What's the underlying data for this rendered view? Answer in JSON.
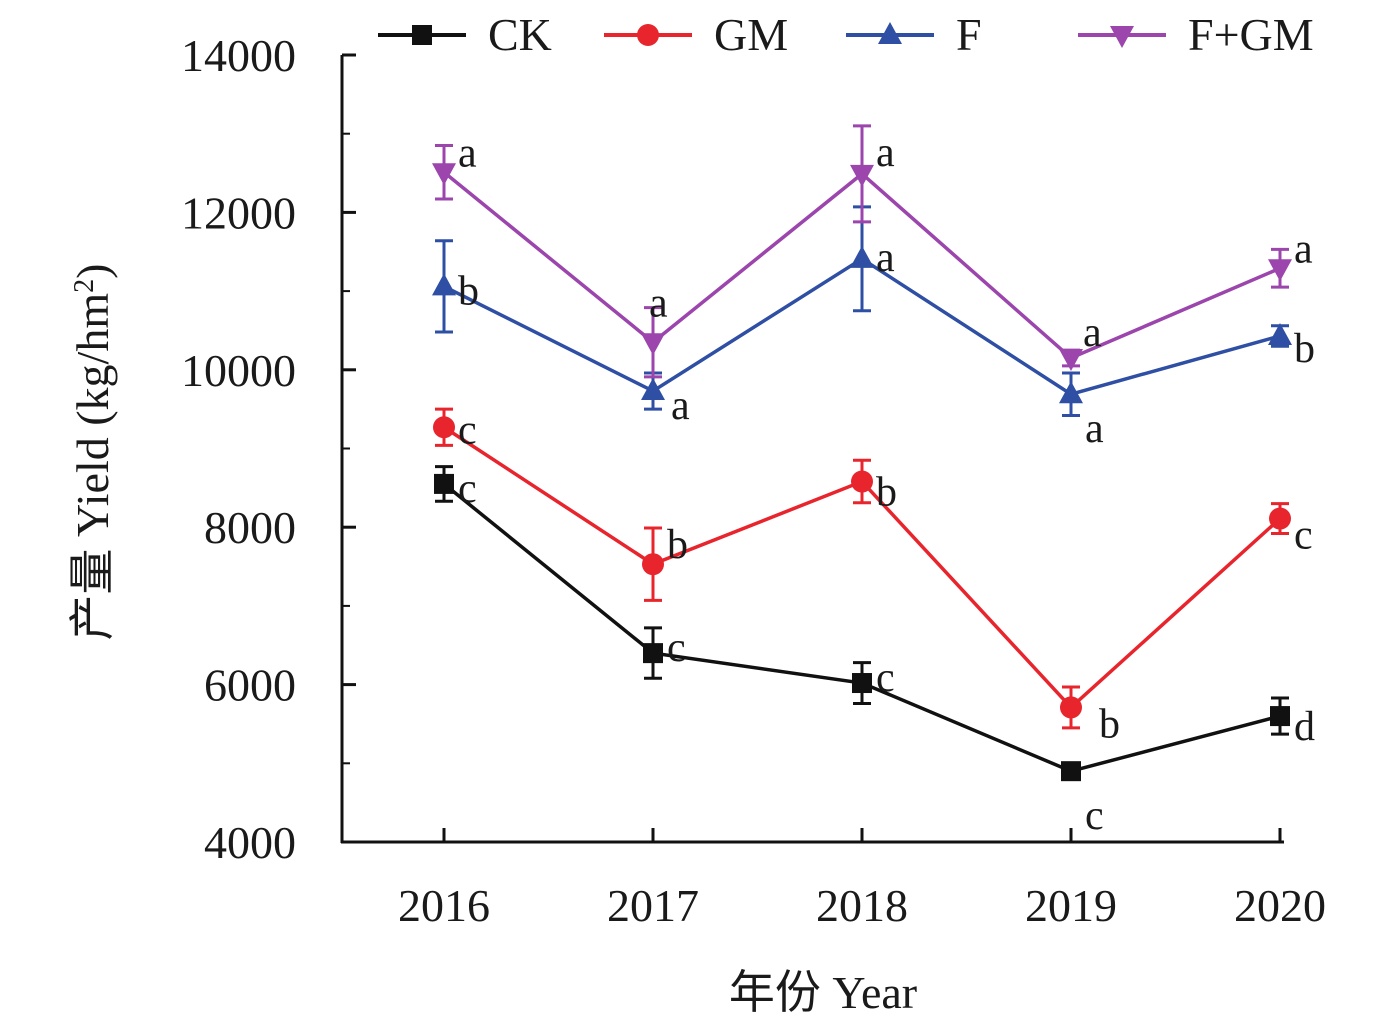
{
  "chart_data": {
    "type": "line",
    "x": [
      "2016",
      "2017",
      "2018",
      "2019",
      "2020"
    ],
    "xlabel": "年份 Year",
    "ylabel_prefix": "产量 Yield (kg/hm",
    "ylabel_sup": "2",
    "ylabel_suffix": ")",
    "ylim": [
      4000,
      14000
    ],
    "yticks": [
      4000,
      6000,
      8000,
      10000,
      12000,
      14000
    ],
    "ytick_labels": [
      "4000",
      "6000",
      "8000",
      "10000",
      "12000",
      "14000"
    ],
    "grid": false,
    "legend_position": "top",
    "series": [
      {
        "name": "CK",
        "color": "#111111",
        "marker": "square",
        "values": [
          8550,
          6400,
          6020,
          4900,
          5600
        ],
        "errors": [
          220,
          320,
          260,
          100,
          230
        ],
        "labels": [
          "c",
          "c",
          "c",
          "c",
          "d"
        ]
      },
      {
        "name": "GM",
        "color": "#e8242c",
        "marker": "circle",
        "values": [
          9270,
          7530,
          8580,
          5710,
          8110
        ],
        "errors": [
          230,
          460,
          270,
          260,
          190
        ],
        "labels": [
          "c",
          "b",
          "b",
          "b",
          "c"
        ]
      },
      {
        "name": "F",
        "color": "#2e4fa3",
        "marker": "triangle-up",
        "values": [
          11060,
          9730,
          11410,
          9690,
          10430
        ],
        "errors": [
          580,
          230,
          660,
          270,
          130
        ],
        "labels": [
          "b",
          "a",
          "a",
          "a",
          "b"
        ]
      },
      {
        "name": "F+GM",
        "color": "#9b45ad",
        "marker": "triangle-down",
        "values": [
          12510,
          10350,
          12490,
          10150,
          11290
        ],
        "errors": [
          340,
          440,
          610,
          100,
          240
        ],
        "labels": [
          "a",
          "a",
          "a",
          "a",
          "a"
        ]
      }
    ]
  }
}
